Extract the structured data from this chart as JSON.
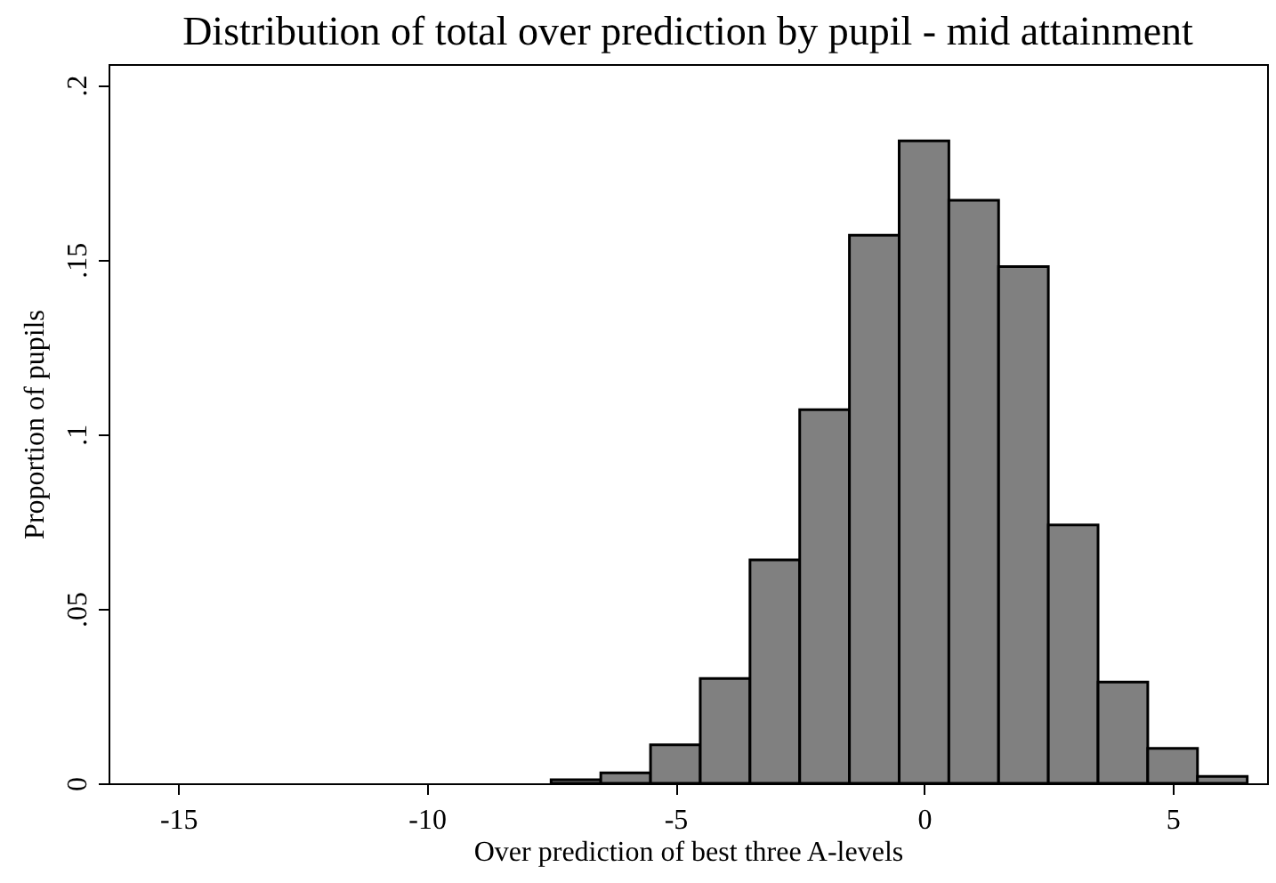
{
  "chart_data": {
    "type": "histogram",
    "title": "Distribution of total over prediction by pupil - mid attainment",
    "xlabel": "Over prediction of best three A-levels",
    "ylabel": "Proportion of pupils",
    "bins": [
      -7.5,
      -6.5,
      -5.5,
      -4.5,
      -3.5,
      -2.5,
      -1.5,
      -0.5,
      0.5,
      1.5,
      2.5,
      3.5,
      4.5,
      5.5,
      6.5
    ],
    "values": [
      0.001,
      0.003,
      0.011,
      0.03,
      0.064,
      0.107,
      0.157,
      0.184,
      0.167,
      0.148,
      0.074,
      0.029,
      0.01,
      0.002
    ],
    "color": "#808080",
    "xlim": [
      -16.4,
      6.9
    ],
    "xticks": [
      -15,
      -10,
      -5,
      0,
      5
    ],
    "ylim": [
      0,
      0.206
    ],
    "yticks": [
      {
        "value": 0,
        "label": "0"
      },
      {
        "value": 0.05,
        "label": ".05"
      },
      {
        "value": 0.1,
        "label": ".1"
      },
      {
        "value": 0.15,
        "label": ".15"
      },
      {
        "value": 0.2,
        "label": ".2"
      }
    ],
    "grid": false
  }
}
